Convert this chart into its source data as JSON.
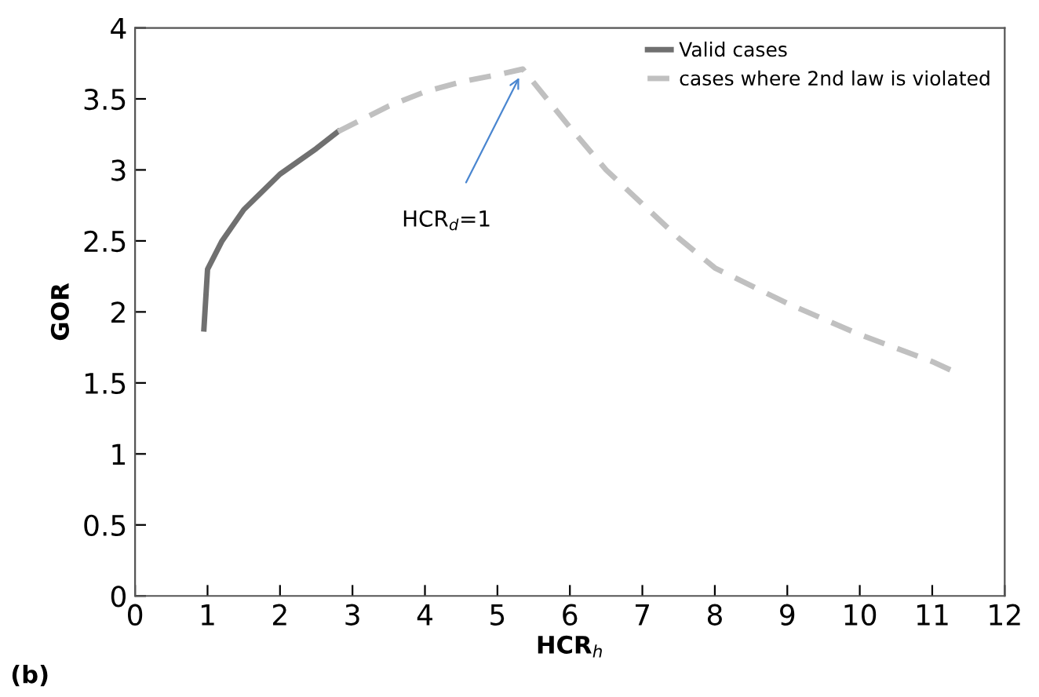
{
  "chart_data": {
    "type": "line",
    "xlabel": "HCR$_{h}$",
    "ylabel": "GOR",
    "xlim": [
      0,
      12
    ],
    "xticks": [
      0,
      1,
      2,
      3,
      4,
      5,
      6,
      7,
      8,
      9,
      10,
      11,
      12
    ],
    "ylim": [
      0,
      4
    ],
    "yticks": [
      0,
      0.5,
      1,
      1.5,
      2,
      2.5,
      3,
      3.5,
      4
    ],
    "grid": false,
    "legend": "top right",
    "marker": "none",
    "series": [
      {
        "name": "Valid cases",
        "color": "#707070",
        "line_style": "solid",
        "x": [
          0.95,
          1.0,
          1.2,
          1.5,
          2,
          2.5,
          2.8
        ],
        "values": [
          1.88,
          2.3,
          2.5,
          2.72,
          2.97,
          3.15,
          3.27
        ]
      },
      {
        "name": "cases where 2nd law is violated",
        "color": "#c0c0c0",
        "line_style": "dashed",
        "x": [
          2.8,
          3.5,
          4,
          4.5,
          5,
          5.35,
          6,
          6.5,
          7,
          7.5,
          8,
          9,
          10,
          11,
          11.3
        ],
        "values": [
          3.27,
          3.45,
          3.55,
          3.62,
          3.67,
          3.71,
          3.3,
          3.0,
          2.76,
          2.52,
          2.31,
          2.06,
          1.84,
          1.65,
          1.58
        ]
      }
    ],
    "annotations": [
      {
        "text": "HCR$_{d}$=1",
        "x": 5.3,
        "y": 3.65
      },
      "(b)"
    ]
  }
}
